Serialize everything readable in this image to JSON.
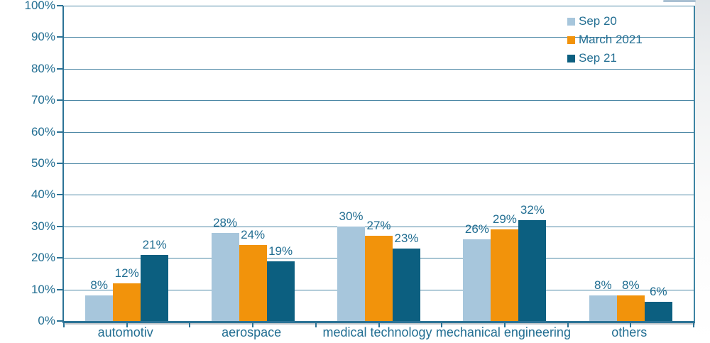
{
  "chart_data": {
    "type": "bar",
    "title": "",
    "xlabel": "",
    "ylabel": "",
    "categories": [
      "automotiv",
      "aerospace",
      "medical technology",
      "mechanical engineering",
      "others"
    ],
    "series": [
      {
        "name": "Sep 20",
        "color": "#a7c6dc",
        "values": [
          8,
          28,
          30,
          26,
          8
        ]
      },
      {
        "name": "March 2021",
        "color": "#f2930b",
        "values": [
          12,
          24,
          27,
          29,
          8
        ]
      },
      {
        "name": "Sep 21",
        "color": "#0c5f80",
        "values": [
          21,
          19,
          23,
          32,
          6
        ]
      }
    ],
    "ylim": [
      0,
      100
    ],
    "ytick_step": 10,
    "ytick_labels": [
      "0%",
      "10%",
      "20%",
      "30%",
      "40%",
      "50%",
      "60%",
      "70%",
      "80%",
      "90%",
      "100%"
    ],
    "value_label_suffix": "%",
    "grid": true,
    "legend_position": "top-right",
    "legend_labels": [
      "Sep 20",
      "March 2021",
      "Sep 21"
    ]
  },
  "style": {
    "text_color": "#226e92",
    "axis_color": "#2c7396",
    "grid_color": "#4d88a6",
    "series_colors": [
      "#a7c6dc",
      "#f2930b",
      "#0c5f80"
    ]
  }
}
